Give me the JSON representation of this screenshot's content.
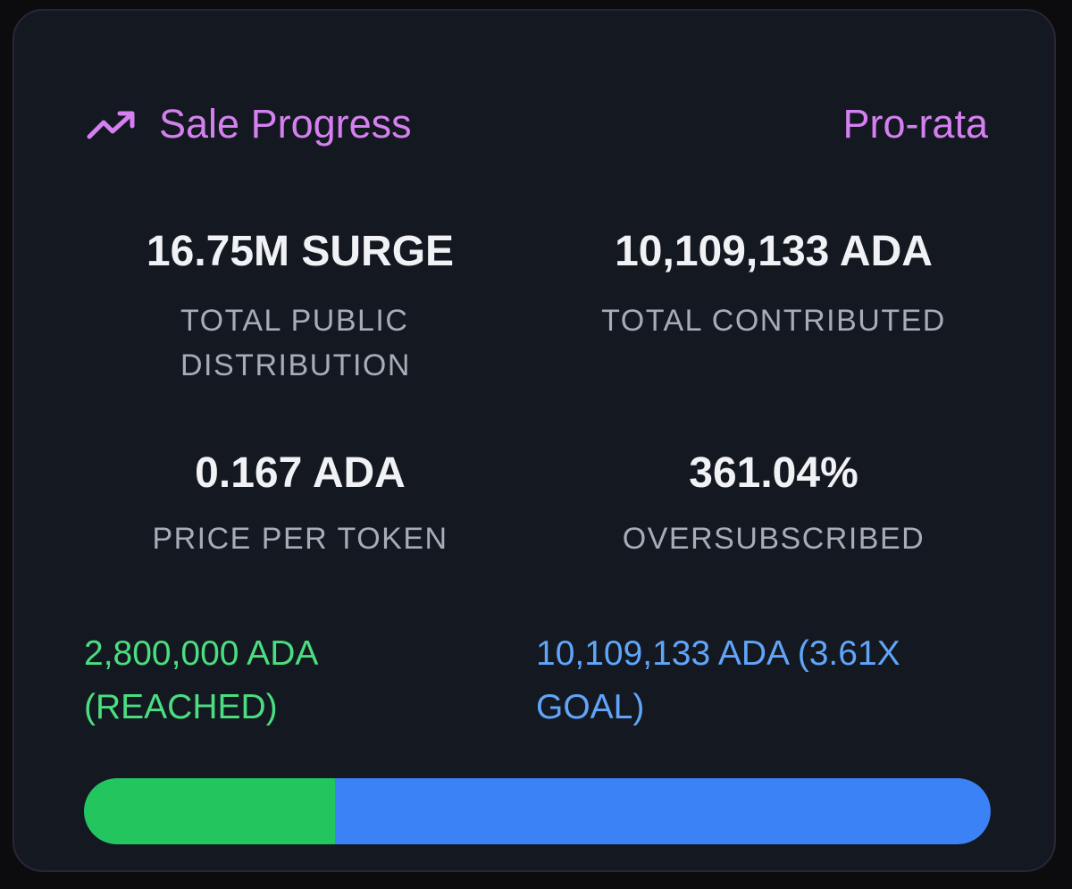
{
  "header": {
    "icon": "trending-up-icon",
    "title": "Sale Progress",
    "sale_type": "Pro-rata"
  },
  "stats": {
    "total_public_distribution": {
      "value": "16.75M SURGE",
      "label_line1": "TOTAL PUBLIC",
      "label_line2": "DISTRIBUTION"
    },
    "total_contributed": {
      "value": "10,109,133 ADA",
      "label": "TOTAL CONTRIBUTED"
    },
    "price_per_token": {
      "value": "0.167 ADA",
      "label": "PRICE PER TOKEN"
    },
    "oversubscribed": {
      "value": "361.04%",
      "label": "OVERSUBSCRIBED"
    }
  },
  "goals": {
    "reached_line1": "2,800,000 ADA",
    "reached_line2": "(REACHED)",
    "total_line1": "10,109,133 ADA (3.61X",
    "total_line2": "GOAL)"
  },
  "progress": {
    "goal_fraction": 0.277,
    "fill_fraction": 1.0
  },
  "colors": {
    "accent": "#d580f0",
    "reached": "#22c55e",
    "total": "#3b82f6"
  }
}
